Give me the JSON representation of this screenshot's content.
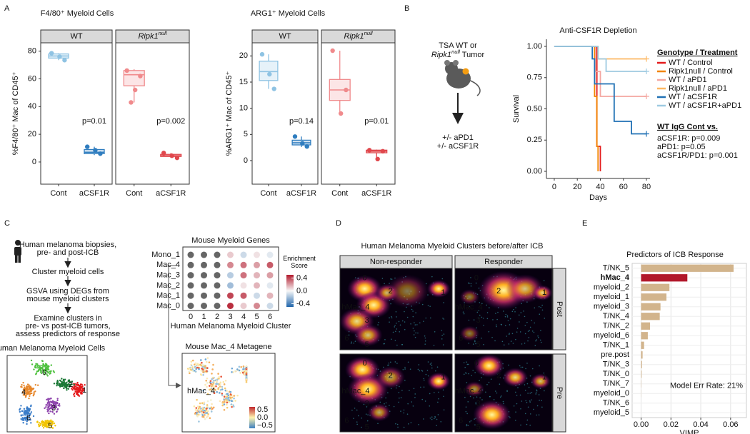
{
  "panel_labels": [
    "A",
    "B",
    "C",
    "D",
    "E"
  ],
  "chart_data": [
    {
      "type": "box",
      "title": "F4/80⁺ Myeloid Cells",
      "y_label": "%F4/80⁺ Mac of CD45⁺",
      "ylim": [
        -16,
        86
      ],
      "yticks": [
        0,
        20,
        40,
        60,
        80
      ],
      "facets": [
        {
          "name": "WT",
          "p_value": "p=0.01",
          "groups": [
            {
              "category": "Cont",
              "color": "#8fc3e3",
              "box": [
                73.5,
                75,
                76.5,
                78,
                78.5
              ],
              "points": [
                78.5,
                73.5,
                76
              ]
            },
            {
              "category": "aCSF1R",
              "color": "#2f7dbf",
              "box": [
                5,
                6,
                7,
                9,
                11
              ],
              "points": [
                11,
                6,
                8.5
              ]
            }
          ]
        },
        {
          "name": "Ripk1",
          "name_sup": "null",
          "p_value": "p=0.002",
          "groups": [
            {
              "category": "Cont",
              "color": "#f08a8c",
              "box": [
                43,
                55,
                63,
                66,
                67
              ],
              "points": [
                66,
                62,
                52,
                43
              ]
            },
            {
              "category": "aCSF1R",
              "color": "#e0474c",
              "box": [
                3,
                4,
                4.5,
                5.5,
                6.5
              ],
              "points": [
                6.5,
                3,
                4.5
              ]
            }
          ]
        }
      ]
    },
    {
      "type": "box",
      "title": "ARG1⁺ Myeloid Cells",
      "y_label": "%ARG1⁺ Mac of CD45⁺",
      "ylim": [
        -4.5,
        22.5
      ],
      "yticks": [
        0,
        5,
        10,
        15,
        20
      ],
      "facets": [
        {
          "name": "WT",
          "p_value": "p=0.14",
          "groups": [
            {
              "category": "Cont",
              "color": "#8fc3e3",
              "box": [
                13.7,
                15.3,
                17,
                19,
                20.3
              ],
              "points": [
                20.3,
                13.7,
                16.5
              ]
            },
            {
              "category": "aCSF1R",
              "color": "#2f7dbf",
              "box": [
                2.6,
                3,
                3.4,
                3.9,
                4.6
              ],
              "points": [
                4.6,
                2.7,
                3.3
              ]
            }
          ]
        },
        {
          "name": "Ripk1",
          "name_sup": "null",
          "p_value": "p=0.01",
          "groups": [
            {
              "category": "Cont",
              "color": "#f08a8c",
              "box": [
                9,
                11.5,
                13.5,
                15.5,
                21
              ],
              "points": [
                21,
                13.5,
                9
              ]
            },
            {
              "category": "aCSF1R",
              "color": "#e0474c",
              "box": [
                0.4,
                1.5,
                1.8,
                2,
                2.1
              ],
              "points": [
                2,
                1.8,
                0.3
              ]
            }
          ]
        }
      ]
    },
    {
      "type": "survival",
      "title": "Anti-CSF1R Depletion",
      "x_label": "Days",
      "y_label": "Survival",
      "xlim": [
        -6.8,
        83.1
      ],
      "ylim": [
        -0.057,
        1.057
      ],
      "xticks": [
        0,
        20,
        40,
        60,
        80
      ],
      "yticks": [
        {
          "value": 0,
          "label": "0.00"
        },
        {
          "value": 0.25,
          "label": "0.25"
        },
        {
          "value": 0.5,
          "label": "0.50"
        },
        {
          "value": 0.75,
          "label": "0.75"
        },
        {
          "value": 1,
          "label": "1.00"
        }
      ],
      "legend_title": "Genotype / Treatment",
      "series": [
        {
          "name": "WT / Control",
          "color": "#e41a1c",
          "x": [
            0,
            37,
            40
          ],
          "values": [
            1,
            0.2,
            0
          ]
        },
        {
          "name": "Ripk1null / Control",
          "color": "#f28500",
          "x": [
            0,
            35,
            37,
            38
          ],
          "values": [
            1,
            0.6,
            0.2,
            0
          ]
        },
        {
          "name": "WT / aPD1",
          "color": "#f4a6a0",
          "x": [
            0,
            36,
            40,
            80
          ],
          "values": [
            1,
            0.8,
            0.6,
            0.6
          ]
        },
        {
          "name": "Ripk1null / aPD1",
          "color": "#fdb863",
          "x": [
            0,
            38,
            80
          ],
          "values": [
            1,
            0.9,
            0.9
          ]
        },
        {
          "name": "WT / aCSF1R",
          "color": "#2171b5",
          "x": [
            0,
            33,
            35,
            52,
            67,
            80
          ],
          "values": [
            1,
            0.9,
            0.7,
            0.4,
            0.3,
            0.3
          ]
        },
        {
          "name": "WT / aCSF1R+aPD1",
          "color": "#9ecae1",
          "x": [
            0,
            38,
            45,
            80
          ],
          "values": [
            1,
            0.9,
            0.8,
            0.8
          ]
        }
      ],
      "annotation_title": "WT IgG Cont vs.",
      "annotations": [
        "aCSF1R: p=0.009",
        "aPD1: p=0.05",
        "aCSF1R/PD1: p=0.001"
      ]
    },
    {
      "type": "dot",
      "title": "Mouse Myeloid Genes",
      "x_label": "Human Melanoma Myeloid Cluster",
      "categories": [
        "0",
        "1",
        "2",
        "3",
        "4",
        "5",
        "6"
      ],
      "rows": [
        "Mono_1",
        "Mac_4",
        "Mac_3",
        "Mac_2",
        "Mac_1",
        "Mac_0"
      ],
      "values": [
        [
          null,
          null,
          null,
          0.1,
          -0.1,
          0.05,
          -0.05
        ],
        [
          null,
          null,
          null,
          0.25,
          0.3,
          0.2,
          0.35
        ],
        [
          null,
          null,
          null,
          -0.15,
          0.3,
          0.15,
          0.2
        ],
        [
          null,
          null,
          null,
          -0.2,
          0.05,
          0.15,
          -0.05
        ],
        [
          null,
          null,
          null,
          0.4,
          0.35,
          -0.1,
          0.15
        ],
        [
          null,
          null,
          null,
          0.45,
          0.1,
          0.25,
          -0.1
        ]
      ],
      "legend_title": "Enrichment Score",
      "color_lim": [
        -0.5,
        0.5
      ],
      "color_ticks": [
        0.4,
        {
          "value": 0,
          "label": "0.0"
        },
        -0.4
      ]
    },
    {
      "type": "barh",
      "title": "Predictors of ICB Response",
      "x_label": "VIMP",
      "categories": [
        "T/NK_5",
        "hMac_4",
        "myeloid_2",
        "myeloid_1",
        "myeloid_3",
        "T/NK_4",
        "T/NK_2",
        "myeloid_6",
        "T/NK_1",
        "pre.post",
        "T/NK_3",
        "T/NK_0",
        "T/NK_7",
        "myeloid_0",
        "T/NK_6",
        "myeloid_5"
      ],
      "values": [
        0.062,
        0.031,
        0.019,
        0.017,
        0.013,
        0.0125,
        0.006,
        0.0045,
        0.002,
        0.001,
        0.0006,
        0.0004,
        0.0002,
        0.0001,
        0,
        0
      ],
      "colors": [
        "#d2b48c",
        "#b2182b",
        "#d2b48c",
        "#d2b48c",
        "#d2b48c",
        "#d2b48c",
        "#d2b48c",
        "#d2b48c",
        "#d2b48c",
        "#d2b48c",
        "#d2b48c",
        "#d2b48c",
        "#d2b48c",
        "#d2b48c",
        "#d2b48c",
        "#d2b48c"
      ],
      "xlim": [
        -0.006,
        0.0706
      ],
      "xticks": [
        {
          "value": 0,
          "label": "0.00"
        },
        {
          "value": 0.02,
          "label": "0.02"
        },
        {
          "value": 0.04,
          "label": "0.04"
        },
        {
          "value": 0.06,
          "label": "0.06"
        }
      ],
      "grid": true,
      "annotation": "Model Err Rate: 21%"
    }
  ],
  "schematic_b": {
    "line1": "TSA WT or",
    "gene": "Ripk1",
    "gene_sup": "null",
    "line2_tail": " Tumor",
    "treatments": [
      "+/- aPD1",
      "+/- aCSF1R"
    ]
  },
  "schematic_c": {
    "steps": [
      [
        "Human melanoma biopsies,",
        "pre- and post-ICB"
      ],
      [
        "Cluster myeloid cells"
      ],
      [
        "GSVA using DEGs from",
        "mouse myeloid clusters"
      ],
      [
        "Examine clusters in",
        "pre- vs post-ICB tumors,",
        "assess predictors of response"
      ]
    ],
    "umap_human": {
      "title": "Human Melanoma Myeloid Cells",
      "cluster_labels": [
        "0",
        "1",
        "2",
        "3",
        "4",
        "5",
        "6"
      ]
    },
    "umap_mouse": {
      "title": "Mouse Mac_4 Metagene",
      "label": "hMac_4",
      "legend_ticks": [
        "0.5",
        "0.0",
        "−0.5"
      ]
    }
  },
  "panel_d": {
    "title": "Human Melanoma Myeloid Clusters before/after ICB",
    "columns": [
      "Non-responder",
      "Responder"
    ],
    "rows": [
      "Post",
      "Pre"
    ],
    "cluster_labels": [
      "0",
      "2",
      "1",
      "hMac_4",
      "3",
      "6",
      "5"
    ]
  }
}
